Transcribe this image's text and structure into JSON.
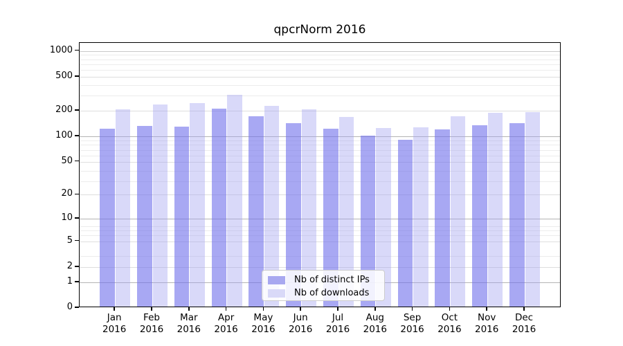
{
  "chart_data": {
    "type": "bar",
    "title": "qpcrNorm 2016",
    "year_label": "2016",
    "categories": [
      "Jan 2016",
      "Feb 2016",
      "Mar 2016",
      "Apr 2016",
      "May 2016",
      "Jun 2016",
      "Jul 2016",
      "Aug 2016",
      "Sep 2016",
      "Oct 2016",
      "Nov 2016",
      "Dec 2016"
    ],
    "months": [
      "Jan",
      "Feb",
      "Mar",
      "Apr",
      "May",
      "Jun",
      "Jul",
      "Aug",
      "Sep",
      "Oct",
      "Nov",
      "Dec"
    ],
    "series": [
      {
        "name": "Nb of distinct IPs",
        "color": "#a8a8f0",
        "fill_rgba": "rgba(110,110,235,0.60)",
        "values": [
          119,
          127,
          125,
          203,
          166,
          138,
          119,
          99,
          87,
          116,
          131,
          138
        ]
      },
      {
        "name": "Nb of downloads",
        "color": "#d9d9f8",
        "fill_rgba": "rgba(160,160,240,0.40)",
        "values": [
          199,
          226,
          236,
          298,
          221,
          201,
          164,
          120,
          122,
          165,
          181,
          185
        ]
      }
    ],
    "xlabel": "",
    "ylabel": "",
    "yscale": "log10(value+1)",
    "y_ticks": [
      0,
      1,
      2,
      5,
      10,
      20,
      50,
      100,
      200,
      500,
      1000
    ],
    "ylim": [
      0,
      1244
    ],
    "grid": true,
    "legend_position": "lower center",
    "colors": {
      "grid_major": "#b4b4b4",
      "grid_mid": "#dedede",
      "grid_minor": "#ececec",
      "axis": "#000000",
      "background": "#ffffff"
    }
  }
}
